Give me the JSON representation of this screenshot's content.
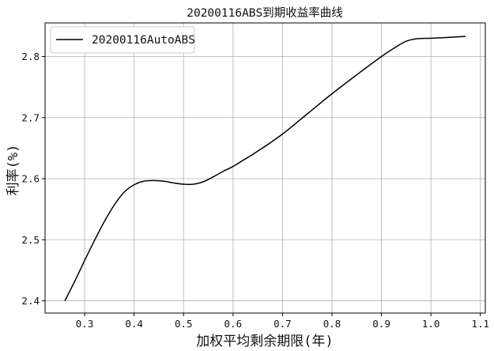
{
  "chart_data": {
    "type": "line",
    "title": "20200116ABS到期收益率曲线",
    "xlabel": "加权平均剩余期限(年)",
    "ylabel": "利率(%)",
    "xlim": [
      0.22,
      1.11
    ],
    "ylim": [
      2.38,
      2.855
    ],
    "xticks": [
      0.3,
      0.4,
      0.5,
      0.6,
      0.7,
      0.8,
      0.9,
      1.0,
      1.1
    ],
    "yticks": [
      2.4,
      2.5,
      2.6,
      2.7,
      2.8
    ],
    "xtick_labels": [
      "0.3",
      "0.4",
      "0.5",
      "0.6",
      "0.7",
      "0.8",
      "0.9",
      "1.0",
      "1.1"
    ],
    "ytick_labels": [
      "2.4",
      "2.5",
      "2.6",
      "2.7",
      "2.8"
    ],
    "grid": true,
    "legend_position": "top-left",
    "series": [
      {
        "name": "20200116AutoABS",
        "color": "#000000",
        "x": [
          0.26,
          0.28,
          0.3,
          0.32,
          0.34,
          0.36,
          0.38,
          0.4,
          0.42,
          0.44,
          0.46,
          0.48,
          0.5,
          0.52,
          0.54,
          0.56,
          0.58,
          0.6,
          0.62,
          0.65,
          0.7,
          0.75,
          0.8,
          0.85,
          0.9,
          0.93,
          0.95,
          0.97,
          1.0,
          1.03,
          1.07
        ],
        "y": [
          2.4,
          2.432,
          2.466,
          2.499,
          2.53,
          2.557,
          2.578,
          2.59,
          2.596,
          2.597,
          2.596,
          2.593,
          2.591,
          2.591,
          2.595,
          2.603,
          2.612,
          2.62,
          2.63,
          2.645,
          2.673,
          2.706,
          2.739,
          2.77,
          2.8,
          2.816,
          2.825,
          2.829,
          2.83,
          2.831,
          2.833
        ]
      }
    ]
  }
}
